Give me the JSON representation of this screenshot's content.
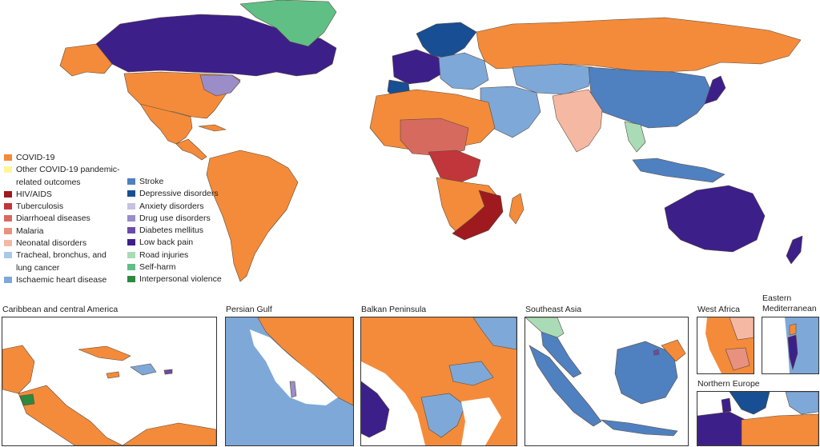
{
  "legend": {
    "col1": [
      {
        "label": "COVID-19",
        "color": "#f48b3a"
      },
      {
        "label": "Other COVID-19 pandemic-\nrelated outcomes",
        "color": "#fff59a"
      },
      {
        "label": "HIV/AIDS",
        "color": "#9e1a1e"
      },
      {
        "label": "Tuberculosis",
        "color": "#c1363a"
      },
      {
        "label": "Diarrhoeal diseases",
        "color": "#d66a5f"
      },
      {
        "label": "Malaria",
        "color": "#e8917e"
      },
      {
        "label": "Neonatal disorders",
        "color": "#f5b8a3"
      },
      {
        "label": "Tracheal, bronchus, and\nlung cancer",
        "color": "#a9c9e8"
      },
      {
        "label": "Ischaemic heart disease",
        "color": "#7ea8d8"
      }
    ],
    "col2": [
      {
        "label": "Stroke",
        "color": "#4f80c0"
      },
      {
        "label": "Depressive disorders",
        "color": "#184e93"
      },
      {
        "label": "Anxiety disorders",
        "color": "#c6c2e0"
      },
      {
        "label": "Drug use disorders",
        "color": "#9a8dc8"
      },
      {
        "label": "Diabetes mellitus",
        "color": "#6a4ca6"
      },
      {
        "label": "Low back pain",
        "color": "#3d1f8a"
      },
      {
        "label": "Road injuries",
        "color": "#a9dbb6"
      },
      {
        "label": "Self-harm",
        "color": "#5fbf85"
      },
      {
        "label": "Interpersonal violence",
        "color": "#2b8a3e"
      }
    ]
  },
  "insets": [
    {
      "title": "Caribbean and central America"
    },
    {
      "title": "Persian Gulf"
    },
    {
      "title": "Balkan Peninsula"
    },
    {
      "title": "Southeast Asia"
    },
    {
      "title": "West Africa"
    },
    {
      "title": "Eastern\nMediterranean"
    },
    {
      "title": "Northern Europe"
    }
  ],
  "colors": {
    "covid": "#f48b3a",
    "low_back_pain": "#3d1f8a",
    "self_harm": "#5fbf85",
    "stroke": "#4f80c0",
    "ihd": "#7ea8d8",
    "hiv": "#9e1a1e",
    "water": "#ffffff"
  }
}
